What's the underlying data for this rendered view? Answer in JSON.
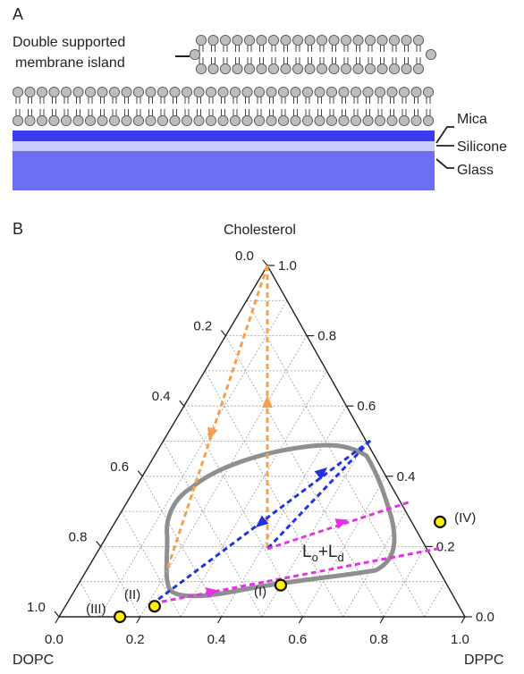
{
  "panel_a": {
    "label": "A",
    "island_label_line1": "Double supported",
    "island_label_line2": "membrane island",
    "layers": [
      {
        "name": "Mica",
        "color": "#3b3bf0"
      },
      {
        "name": "Silicone",
        "color": "#c8ccff"
      },
      {
        "name": "Glass",
        "color": "#6e6ef5"
      }
    ]
  },
  "panel_b": {
    "label": "B",
    "vertices": {
      "top": "Cholesterol",
      "left": "DOPC",
      "right": "DPPC"
    },
    "phase_label_main": "L",
    "phase_label_sub1": "o",
    "phase_label_plus": "+L",
    "phase_label_sub2": "d",
    "colors": {
      "boundary": "#8f8f8f",
      "orange": "#f5a04a",
      "blue": "#2233dd",
      "magenta": "#e632e6",
      "point_fill": "#fff200"
    }
  },
  "chart_data": {
    "type": "ternary",
    "axes": {
      "bottom_ticks": [
        "0.0",
        "0.2",
        "0.4",
        "0.6",
        "0.8",
        "1.0"
      ],
      "right_ticks": [
        "0.0",
        "0.2",
        "0.4",
        "0.6",
        "0.8",
        "1.0"
      ],
      "left_ticks": [
        "0.0",
        "0.2",
        "0.4",
        "0.6",
        "0.8",
        "1.0"
      ]
    },
    "points": [
      {
        "label": "(I)",
        "dppc": 0.5,
        "chol": 0.09
      },
      {
        "label": "(II)",
        "dppc": 0.22,
        "chol": 0.03
      },
      {
        "label": "(III)",
        "dppc": 0.15,
        "chol": 0.0
      },
      {
        "label": "(IV)",
        "dppc": 0.8,
        "chol": 0.27
      }
    ]
  }
}
